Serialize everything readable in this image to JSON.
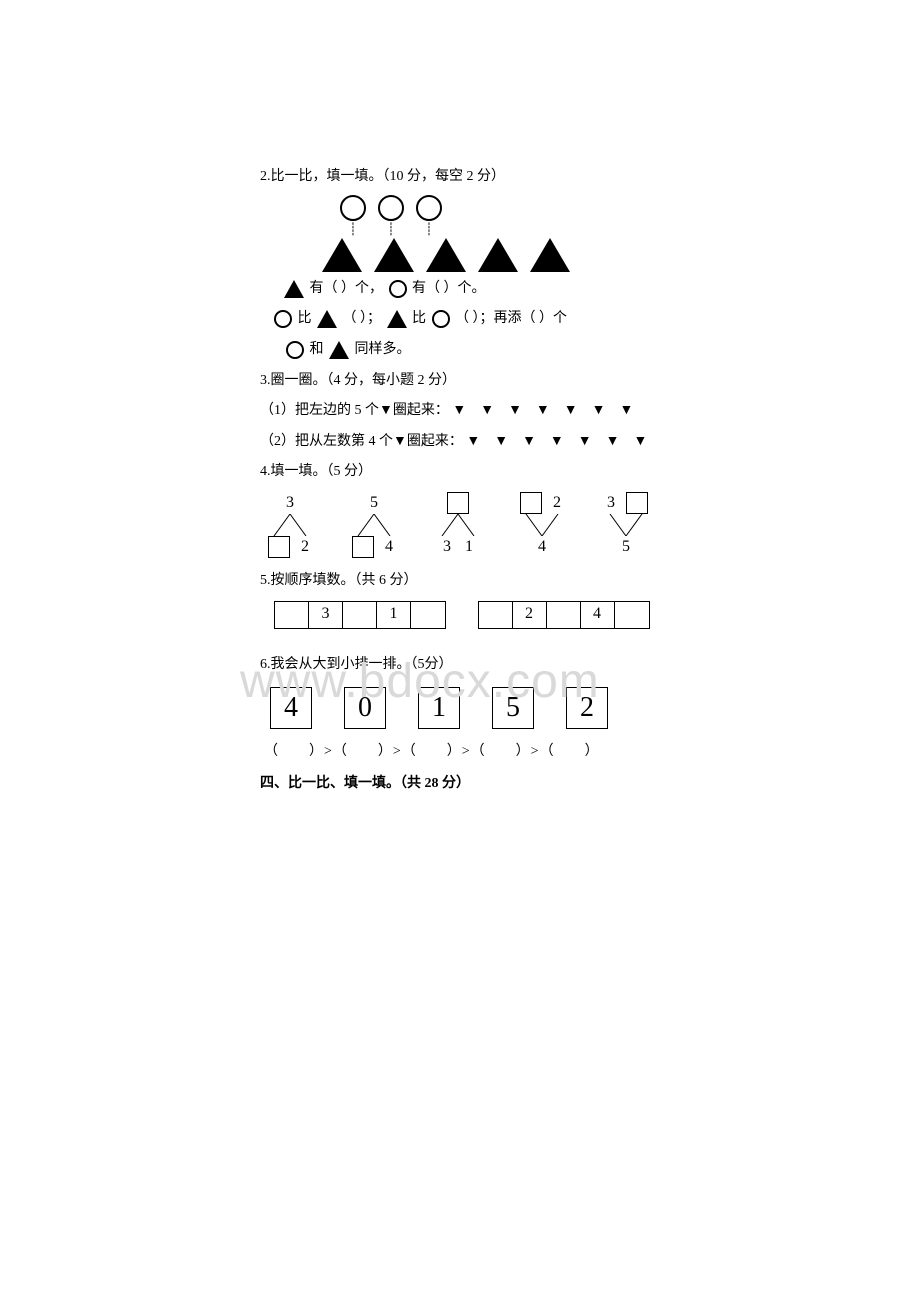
{
  "q2": {
    "title": "2.比一比，填一填。（10 分，每空 2 分）",
    "circle_count": 3,
    "triangle_count": 5,
    "line1_a": "有（",
    "line1_b": "）个，",
    "line1_c": "有（",
    "line1_d": "）个。",
    "line2_a": "比",
    "line2_b": "（",
    "line2_c": "）；",
    "line2_d": "比",
    "line2_e": "（",
    "line2_f": "）；再添（",
    "line2_g": "）个",
    "line3_a": "和",
    "line3_b": "同样多。"
  },
  "q3": {
    "title": "3.圈一圈。（4 分，每小题 2 分）",
    "item1": "（1）把左边的 5 个▼圈起来：",
    "item2": "（2）把从左数第 4 个▼圈起来：",
    "triangles": "▼　▼　▼　▼　▼　▼　▼"
  },
  "q4": {
    "title": "4.填一填。（5 分）",
    "bonds": [
      {
        "top": [
          "3"
        ],
        "bottom": [
          "□",
          "2"
        ]
      },
      {
        "top": [
          "5"
        ],
        "bottom": [
          "□",
          "4"
        ]
      },
      {
        "top": [
          "□"
        ],
        "bottom": [
          "3",
          "1"
        ]
      },
      {
        "top": [
          "□",
          "2"
        ],
        "bottom": [
          "4"
        ],
        "reverse": true
      },
      {
        "top": [
          "3",
          "□"
        ],
        "bottom": [
          "5"
        ],
        "reverse": true
      }
    ]
  },
  "q5": {
    "title": "5.按顺序填数。（共 6 分）",
    "seq_a": [
      "",
      "3",
      "",
      "1",
      ""
    ],
    "seq_b": [
      "",
      "2",
      "",
      "4",
      ""
    ]
  },
  "q6": {
    "title": "6.我会从大到小排一排。（5分）",
    "numbers": [
      "4",
      "0",
      "1",
      "5",
      "2"
    ],
    "parens": "（　　）>（　　）>（　　）>（　　）>（　　）"
  },
  "q_four": {
    "title": "四、比一比、填一填。（共 28 分）"
  },
  "watermark": "www.bdocx.com",
  "colors": {
    "text": "#000000",
    "watermark": "#d9d9d9",
    "background": "#ffffff"
  }
}
